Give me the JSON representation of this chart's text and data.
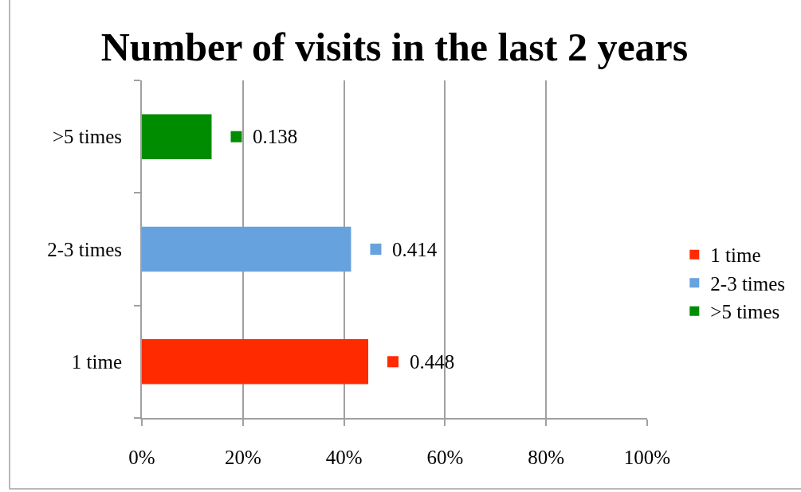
{
  "chart_data": {
    "type": "bar",
    "orientation": "horizontal",
    "title": "Number of visits in the last 2 years",
    "categories": [
      ">5 times",
      "2-3 times",
      "1 time"
    ],
    "series": [
      {
        "name": "1 time",
        "color": "#ff2a00",
        "values": [
          null,
          null,
          0.448
        ]
      },
      {
        "name": "2-3 times",
        "color": "#66a2de",
        "values": [
          null,
          0.414,
          null
        ]
      },
      {
        "name": ">5 times",
        "color": "#008c00",
        "values": [
          0.138,
          null,
          null
        ]
      }
    ],
    "xlim": [
      0,
      1
    ],
    "xticks": [
      {
        "value": 0,
        "label": "0%"
      },
      {
        "value": 0.2,
        "label": "20%"
      },
      {
        "value": 0.4,
        "label": "40%"
      },
      {
        "value": 0.6,
        "label": "60%"
      },
      {
        "value": 0.8,
        "label": "80%"
      },
      {
        "value": 1,
        "label": "100%"
      }
    ],
    "grid": "x",
    "legend": "right",
    "data_labels": true
  }
}
